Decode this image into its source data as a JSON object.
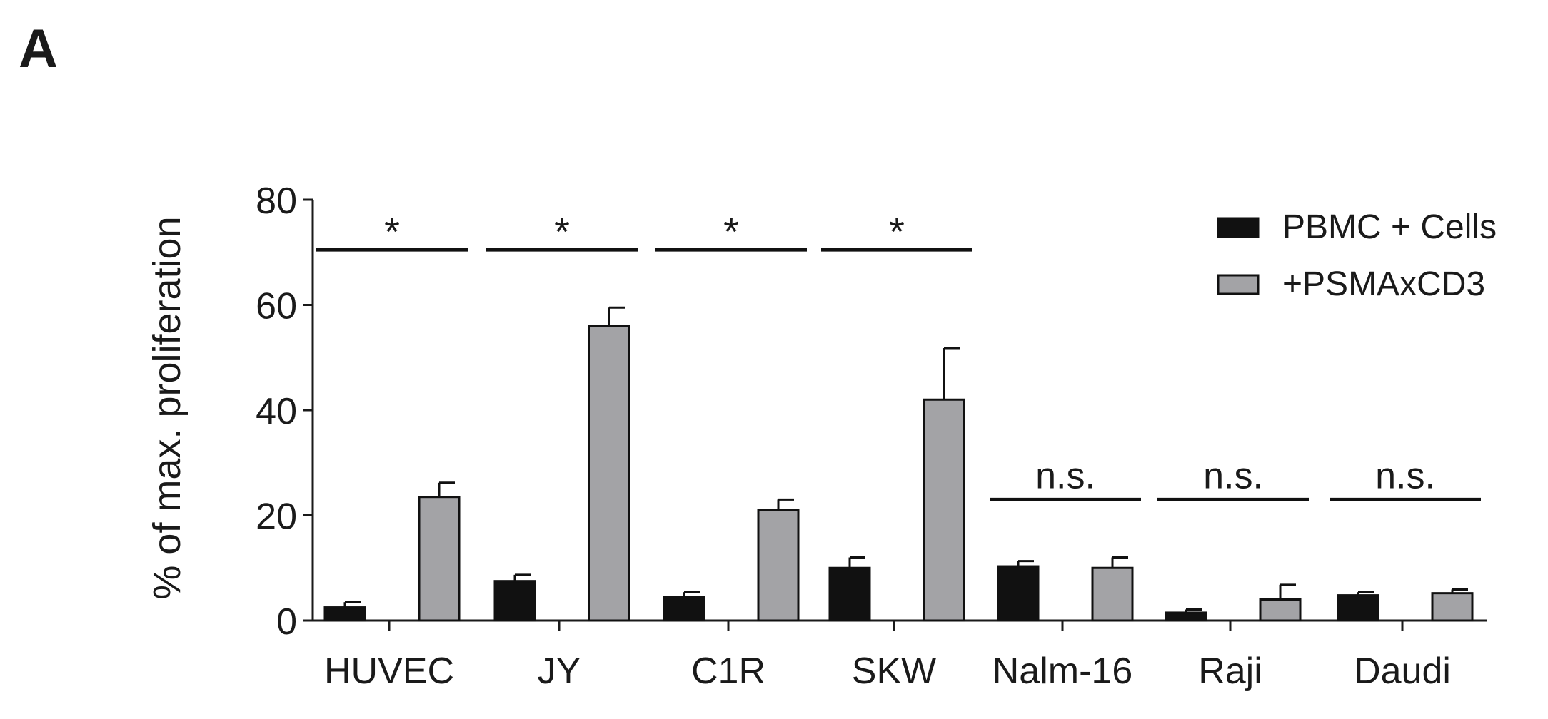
{
  "panel_label": "A",
  "chart_data": {
    "type": "bar",
    "title": "",
    "xlabel": "",
    "ylabel": "% of max. proliferation",
    "ylim": [
      0,
      80
    ],
    "yticks": [
      0,
      20,
      40,
      60,
      80
    ],
    "grid": false,
    "legend_position": "top-right",
    "categories": [
      "HUVEC",
      "JY",
      "C1R",
      "SKW",
      "Nalm-16",
      "Raji",
      "Daudi"
    ],
    "series": [
      {
        "name": "PBMC + Cells",
        "color": "#111111",
        "values": [
          2.5,
          7.5,
          4.5,
          10.0,
          10.3,
          1.5,
          4.8
        ],
        "errors": [
          1.0,
          1.2,
          0.9,
          2.0,
          1.0,
          0.6,
          0.6
        ]
      },
      {
        "name": "+PSMAxCD3",
        "color": "#a3a3a6",
        "values": [
          23.5,
          56.0,
          21.0,
          42.0,
          10.0,
          4.0,
          5.2
        ],
        "errors": [
          2.7,
          3.5,
          2.0,
          9.8,
          2.0,
          2.8,
          0.7
        ]
      }
    ],
    "significance": [
      {
        "category": "HUVEC",
        "label": "*",
        "level": 70.5
      },
      {
        "category": "JY",
        "label": "*",
        "level": 70.5
      },
      {
        "category": "C1R",
        "label": "*",
        "level": 70.5
      },
      {
        "category": "SKW",
        "label": "*",
        "level": 70.5
      },
      {
        "category": "Nalm-16",
        "label": "n.s.",
        "level": 23.0
      },
      {
        "category": "Raji",
        "label": "n.s.",
        "level": 23.0
      },
      {
        "category": "Daudi",
        "label": "n.s.",
        "level": 23.0
      }
    ]
  }
}
